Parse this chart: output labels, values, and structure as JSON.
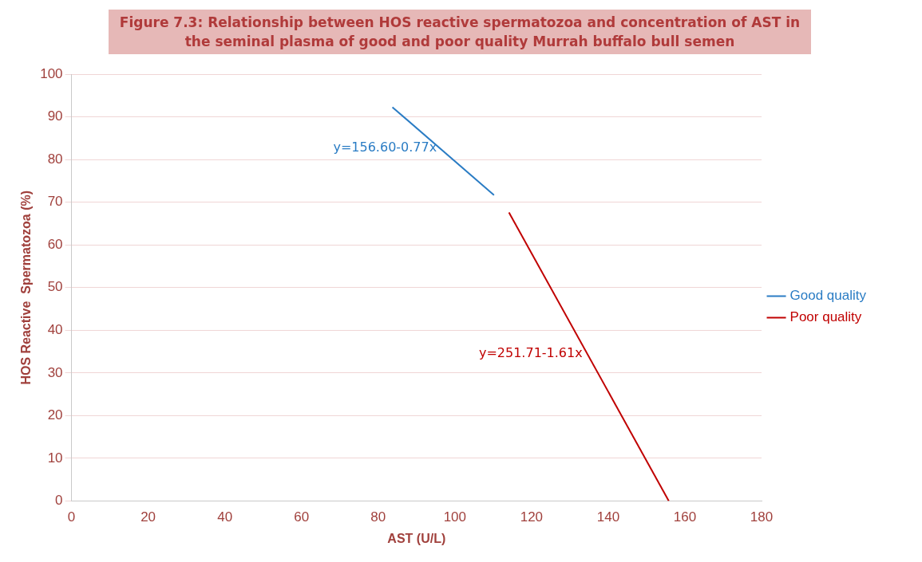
{
  "chart_data": {
    "type": "line",
    "title": "Figure 7.3: Relationship between HOS reactive spermatozoa and concentration of AST in the seminal plasma of good and poor quality Murrah buffalo bull semen",
    "xlabel": "AST (U/L)",
    "ylabel": "HOS Reactive  Spermatozoa (%)",
    "xlim": [
      0,
      180
    ],
    "xticks": [
      0,
      20,
      40,
      60,
      80,
      100,
      120,
      140,
      160,
      180
    ],
    "ylim": [
      0,
      100
    ],
    "yticks": [
      0,
      10,
      20,
      30,
      40,
      50,
      60,
      70,
      80,
      90,
      100
    ],
    "grid": "y",
    "legend": "right",
    "marker": "none",
    "series": [
      {
        "name": "Good quality",
        "color": "#2a7cc4",
        "x": [
          83.7,
          110.2
        ],
        "values": [
          92.3,
          71.7
        ]
      },
      {
        "name": "Poor quality",
        "color": "#c00000",
        "x": [
          114.1,
          155.8
        ],
        "values": [
          67.6,
          0
        ]
      }
    ],
    "annotations": [
      "y=156.60-0.77x",
      "y=251.71-1.61x"
    ]
  }
}
